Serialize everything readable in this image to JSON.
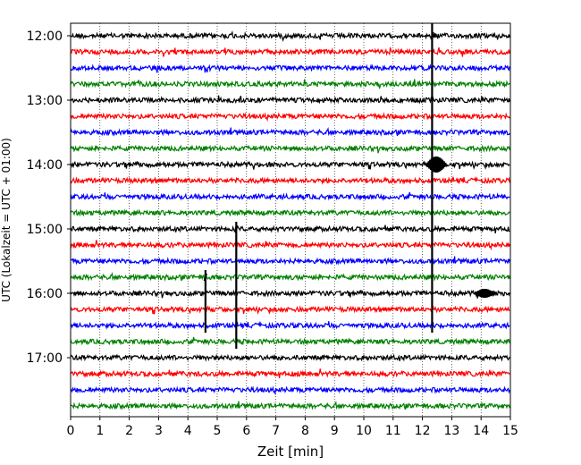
{
  "chart_data": {
    "type": "line",
    "title": "",
    "xlabel": "Zeit  [min]",
    "ylabel": "UTC (Lokalzeit = UTC + 01:00)",
    "xlim": [
      0,
      15
    ],
    "x_ticks": [
      "0",
      "1",
      "2",
      "3",
      "4",
      "5",
      "6",
      "7",
      "8",
      "9",
      "10",
      "11",
      "12",
      "13",
      "14",
      "15"
    ],
    "y_ticks": [
      "12:00",
      "13:00",
      "14:00",
      "15:00",
      "16:00",
      "17:00"
    ],
    "grid": "vertical dotted",
    "row_interval_minutes": 15,
    "row_colors": [
      "#000000",
      "#ff0000",
      "#0000ff",
      "#008000"
    ],
    "series": [
      {
        "start": "12:00",
        "color": "#000000"
      },
      {
        "start": "12:15",
        "color": "#ff0000"
      },
      {
        "start": "12:30",
        "color": "#0000ff"
      },
      {
        "start": "12:45",
        "color": "#008000"
      },
      {
        "start": "13:00",
        "color": "#000000"
      },
      {
        "start": "13:15",
        "color": "#ff0000"
      },
      {
        "start": "13:30",
        "color": "#0000ff"
      },
      {
        "start": "13:45",
        "color": "#008000"
      },
      {
        "start": "14:00",
        "color": "#000000"
      },
      {
        "start": "14:15",
        "color": "#ff0000"
      },
      {
        "start": "14:30",
        "color": "#0000ff"
      },
      {
        "start": "14:45",
        "color": "#008000"
      },
      {
        "start": "15:00",
        "color": "#000000"
      },
      {
        "start": "15:15",
        "color": "#ff0000"
      },
      {
        "start": "15:30",
        "color": "#0000ff"
      },
      {
        "start": "15:45",
        "color": "#008000"
      },
      {
        "start": "16:00",
        "color": "#000000"
      },
      {
        "start": "16:15",
        "color": "#ff0000"
      },
      {
        "start": "16:30",
        "color": "#0000ff"
      },
      {
        "start": "16:45",
        "color": "#008000"
      },
      {
        "start": "17:00",
        "color": "#000000"
      },
      {
        "start": "17:15",
        "color": "#ff0000"
      },
      {
        "start": "17:30",
        "color": "#0000ff"
      },
      {
        "start": "17:45",
        "color": "#008000"
      }
    ],
    "events": [
      {
        "label": "spike",
        "x_min": 12.33,
        "rows": [
          "12:00",
          "16:30"
        ],
        "amplitude": "very large"
      },
      {
        "label": "burst",
        "x_min": 12.35,
        "rows": [
          "14:00"
        ],
        "amplitude": "large"
      },
      {
        "label": "spike",
        "x_min": 5.65,
        "rows": [
          "15:00",
          "16:45"
        ],
        "amplitude": "large"
      },
      {
        "label": "spike",
        "x_min": 4.6,
        "rows": [
          "15:45",
          "16:30"
        ],
        "amplitude": "large"
      },
      {
        "label": "burst",
        "x_min": 14.0,
        "rows": [
          "16:00"
        ],
        "amplitude": "medium"
      }
    ]
  }
}
